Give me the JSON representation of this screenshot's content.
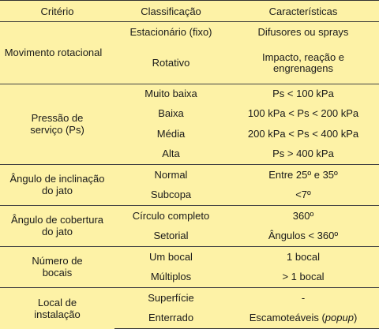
{
  "headers": [
    "Critério",
    "Classificação",
    "Características"
  ],
  "groups": [
    {
      "criterion": "Movimento rotacional",
      "rows": [
        {
          "classification": "Estacionário (fixo)",
          "characteristics": "Difusores ou sprays"
        },
        {
          "classification": "Rotativo",
          "characteristics": "Impacto, reação e engrenagens"
        }
      ]
    },
    {
      "criterion": "Pressão de serviço (Ps)",
      "rows": [
        {
          "classification": "Muito baixa",
          "characteristics": "Ps < 100 kPa"
        },
        {
          "classification": "Baixa",
          "characteristics": "100 kPa < Ps < 200 kPa"
        },
        {
          "classification": "Média",
          "characteristics": "200 kPa < Ps < 400 kPa"
        },
        {
          "classification": "Alta",
          "characteristics": "Ps > 400 kPa"
        }
      ]
    },
    {
      "criterion": "Ângulo de inclinação do jato",
      "rows": [
        {
          "classification": "Normal",
          "characteristics": "Entre 25º e 35º"
        },
        {
          "classification": "Subcopa",
          "characteristics": "<7º"
        }
      ]
    },
    {
      "criterion": "Ângulo de cobertura do jato",
      "rows": [
        {
          "classification": "Círculo completo",
          "characteristics": "360º"
        },
        {
          "classification": "Setorial",
          "characteristics": "Ângulos < 360º"
        }
      ]
    },
    {
      "criterion": "Número de bocais",
      "rows": [
        {
          "classification": "Um bocal",
          "characteristics": "1 bocal"
        },
        {
          "classification": "Múltiplos",
          "characteristics": "> 1 bocal"
        }
      ]
    },
    {
      "criterion": "Local de instalação",
      "rows": [
        {
          "classification": "Superfície",
          "characteristics": "-"
        },
        {
          "classification": "Enterrado",
          "characteristics": "Escamoteáveis (popup)"
        }
      ]
    }
  ]
}
